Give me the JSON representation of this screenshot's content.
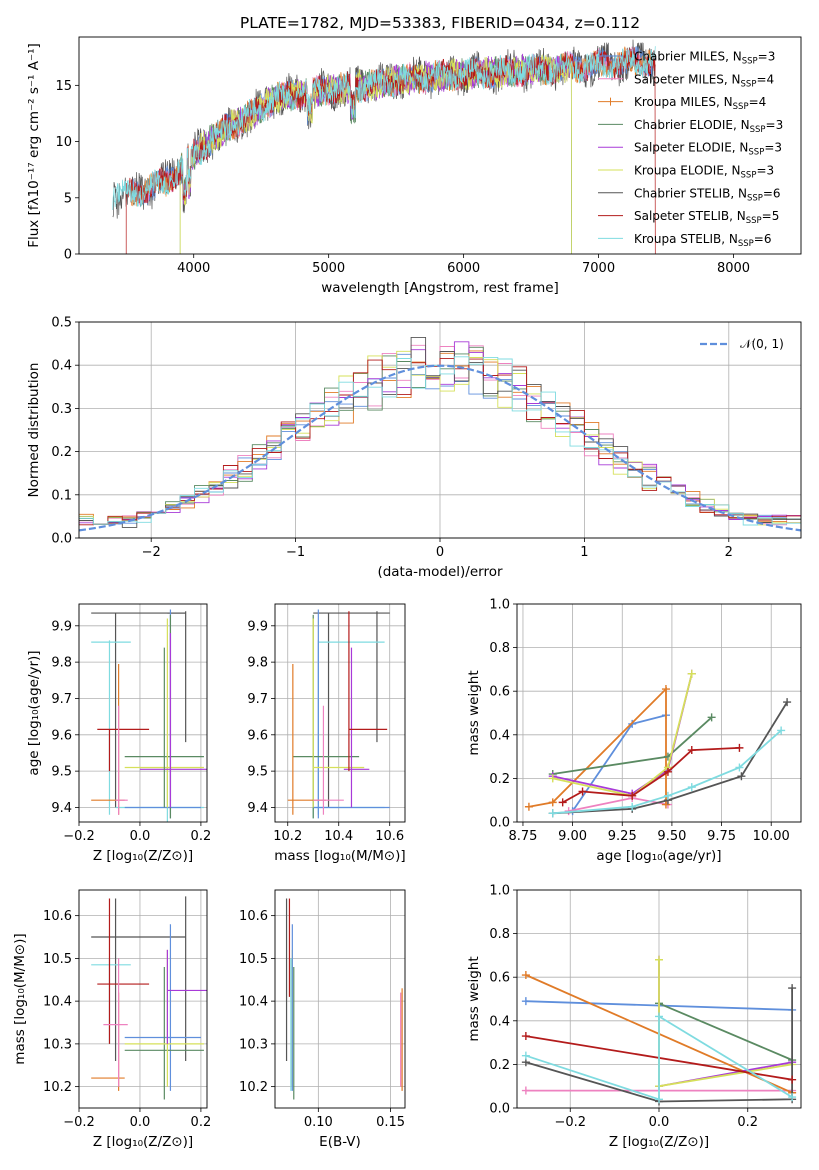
{
  "title": "PLATE=1782, MJD=53383, FIBERID=0434, z=0.112",
  "colors": {
    "Chabrier MILES": "#5f8fdc",
    "Salpeter MILES": "#ee82c0",
    "Kroupa MILES": "#e07b28",
    "Chabrier ELODIE": "#5a8a62",
    "Salpeter ELODIE": "#a83ad8",
    "Kroupa ELODIE": "#d6e05a",
    "Chabrier STELIB": "#555555",
    "Salpeter STELIB": "#b31b1b",
    "Kroupa STELIB": "#7fdbe0",
    "normal": "#5f8fdc"
  },
  "chart_data": [
    {
      "type": "line",
      "name": "spectrum",
      "xlabel": "wavelength [Angstrom, rest frame]",
      "ylabel": "Flux [fλ10⁻¹⁷ erg cm⁻² s⁻¹ A⁻¹]",
      "xlim": [
        3150,
        8500
      ],
      "ylim": [
        0,
        19.3
      ],
      "xticks": [
        4000,
        5000,
        6000,
        7000,
        8000
      ],
      "yticks": [
        0,
        5,
        10,
        15
      ],
      "legend_position": "right",
      "continuum": {
        "x": [
          3450,
          3600,
          3800,
          4000,
          4200,
          4400,
          4600,
          4800,
          5000,
          5300,
          5600,
          6000,
          6400,
          6800,
          7200,
          7400
        ],
        "y": [
          5.2,
          5.6,
          6.4,
          8.8,
          10.8,
          12.2,
          13.8,
          14.3,
          14.6,
          15.0,
          15.6,
          16.0,
          16.3,
          16.6,
          17.0,
          17.2
        ]
      },
      "series": [
        {
          "label": "Chabrier MILES, N",
          "sub": "SSP",
          "val": "=3",
          "range": [
            3540,
            7400
          ]
        },
        {
          "label": "Salpeter MILES, N",
          "sub": "SSP",
          "val": "=4",
          "range": [
            3540,
            7400
          ]
        },
        {
          "label": "Kroupa MILES, N",
          "sub": "SSP",
          "val": "=4",
          "range": [
            3540,
            7400
          ]
        },
        {
          "label": "Chabrier ELODIE, N",
          "sub": "SSP",
          "val": "=3",
          "range": [
            3900,
            6800
          ]
        },
        {
          "label": "Salpeter ELODIE, N",
          "sub": "SSP",
          "val": "=3",
          "range": [
            3900,
            6800
          ]
        },
        {
          "label": "Kroupa ELODIE, N",
          "sub": "SSP",
          "val": "=3",
          "range": [
            3900,
            6800
          ]
        },
        {
          "label": "Chabrier STELIB, N",
          "sub": "SSP",
          "val": "=6",
          "range": [
            3400,
            7420
          ]
        },
        {
          "label": "Salpeter STELIB, N",
          "sub": "SSP",
          "val": "=5",
          "range": [
            3500,
            7420
          ]
        },
        {
          "label": "Kroupa STELIB, N",
          "sub": "SSP",
          "val": "=6",
          "range": [
            3400,
            7420
          ]
        }
      ]
    },
    {
      "type": "histogram",
      "name": "residuals",
      "xlabel": "(data-model)/error",
      "ylabel": "Normed distribution",
      "xlim": [
        -2.5,
        2.5
      ],
      "ylim": [
        0,
        0.5
      ],
      "xticks": [
        -2,
        -1,
        0,
        1,
        2
      ],
      "yticks": [
        0.0,
        0.1,
        0.2,
        0.3,
        0.4,
        0.5
      ],
      "grid": true,
      "legend": "𝒩(0, 1)",
      "legend_position": "top-right",
      "bin_width": 0.1
    },
    {
      "type": "errorbar",
      "name": "age-vs-Z",
      "xlabel": "Z [log₁₀(Z/Z⊙)]",
      "ylabel": "age  [log₁₀(age/yr)]",
      "xlim": [
        -0.2,
        0.22
      ],
      "ylim": [
        9.36,
        9.96
      ],
      "xticks": [
        -0.2,
        0.0,
        0.2
      ],
      "yticks": [
        9.4,
        9.5,
        9.6,
        9.7,
        9.8,
        9.9
      ],
      "grid": true
    },
    {
      "type": "errorbar",
      "name": "age-vs-mass",
      "xlabel": "mass [log₁₀(M/M⊙)]",
      "xlim": [
        10.15,
        10.66
      ],
      "ylim": [
        9.36,
        9.96
      ],
      "xticks": [
        10.2,
        10.4,
        10.6
      ],
      "yticks": [
        9.4,
        9.5,
        9.6,
        9.7,
        9.8,
        9.9
      ],
      "grid": true
    },
    {
      "type": "line",
      "name": "mass-weight-vs-age",
      "xlabel": "age  [log₁₀(age/yr)]",
      "ylabel": "mass weight",
      "xlim": [
        8.72,
        10.15
      ],
      "ylim": [
        0,
        1
      ],
      "xticks": [
        8.75,
        9.0,
        9.25,
        9.5,
        9.75,
        10.0
      ],
      "yticks": [
        0.0,
        0.2,
        0.4,
        0.6,
        0.8,
        1.0
      ],
      "grid": true,
      "series": [
        {
          "name": "Chabrier MILES",
          "x": [
            9.0,
            9.3,
            9.47
          ],
          "y": [
            0.05,
            0.45,
            0.49
          ]
        },
        {
          "name": "Salpeter MILES",
          "x": [
            8.98,
            9.3,
            9.48
          ],
          "y": [
            0.05,
            0.11,
            0.08
          ]
        },
        {
          "name": "Kroupa MILES",
          "x": [
            8.78,
            8.9,
            9.47,
            9.47
          ],
          "y": [
            0.07,
            0.09,
            0.61,
            0.08
          ]
        },
        {
          "name": "Chabrier ELODIE",
          "x": [
            8.9,
            9.48,
            9.7
          ],
          "y": [
            0.22,
            0.3,
            0.48
          ]
        },
        {
          "name": "Salpeter ELODIE",
          "x": [
            8.9,
            9.3,
            9.48,
            9.6
          ],
          "y": [
            0.21,
            0.13,
            0.24,
            0.68
          ]
        },
        {
          "name": "Kroupa ELODIE",
          "x": [
            8.9,
            9.3,
            9.48,
            9.6
          ],
          "y": [
            0.2,
            0.12,
            0.25,
            0.68
          ]
        },
        {
          "name": "Chabrier STELIB",
          "x": [
            8.9,
            9.3,
            9.48,
            9.85,
            10.08
          ],
          "y": [
            0.04,
            0.06,
            0.1,
            0.21,
            0.55
          ]
        },
        {
          "name": "Salpeter STELIB",
          "x": [
            8.95,
            9.05,
            9.3,
            9.48,
            9.6,
            9.84
          ],
          "y": [
            0.09,
            0.14,
            0.12,
            0.23,
            0.33,
            0.34
          ]
        },
        {
          "name": "Kroupa STELIB",
          "x": [
            8.9,
            9.3,
            9.48,
            9.6,
            9.84,
            10.05
          ],
          "y": [
            0.04,
            0.07,
            0.12,
            0.16,
            0.25,
            0.42
          ]
        }
      ]
    },
    {
      "type": "errorbar",
      "name": "mass-vs-Z",
      "xlabel": "Z [log₁₀(Z/Z⊙)]",
      "ylabel": "mass [log₁₀(M/M⊙)]",
      "xlim": [
        -0.2,
        0.22
      ],
      "ylim": [
        10.15,
        10.66
      ],
      "xticks": [
        -0.2,
        0.0,
        0.2
      ],
      "yticks": [
        10.2,
        10.3,
        10.4,
        10.5,
        10.6
      ],
      "grid": true
    },
    {
      "type": "errorbar",
      "name": "mass-vs-ebv",
      "xlabel": "E(B-V)",
      "xlim": [
        0.07,
        0.16
      ],
      "ylim": [
        10.15,
        10.66
      ],
      "xticks": [
        0.1,
        0.15
      ],
      "yticks": [
        10.2,
        10.3,
        10.4,
        10.5,
        10.6
      ],
      "grid": true
    },
    {
      "type": "line",
      "name": "mass-weight-vs-Z",
      "xlabel": "Z [log₁₀(Z/Z⊙)]",
      "ylabel": "mass weight",
      "xlim": [
        -0.32,
        0.32
      ],
      "ylim": [
        0,
        1
      ],
      "xticks": [
        -0.2,
        0.0,
        0.2
      ],
      "yticks": [
        0.0,
        0.2,
        0.4,
        0.6,
        0.8,
        1.0
      ],
      "grid": true,
      "series": [
        {
          "name": "Chabrier MILES",
          "x": [
            -0.3,
            0.3
          ],
          "y": [
            0.49,
            0.45
          ]
        },
        {
          "name": "Salpeter MILES",
          "x": [
            -0.3,
            0.3
          ],
          "y": [
            0.08,
            0.08
          ]
        },
        {
          "name": "Kroupa MILES",
          "x": [
            -0.3,
            0.3
          ],
          "y": [
            0.61,
            0.07
          ]
        },
        {
          "name": "Chabrier ELODIE",
          "x": [
            0.0,
            0.3
          ],
          "y": [
            0.48,
            0.22
          ]
        },
        {
          "name": "Salpeter ELODIE",
          "x": [
            0.0,
            0.0,
            0.3
          ],
          "y": [
            0.68,
            0.1,
            0.21
          ]
        },
        {
          "name": "Kroupa ELODIE",
          "x": [
            0.0,
            0.0,
            0.3
          ],
          "y": [
            0.68,
            0.1,
            0.2
          ]
        },
        {
          "name": "Chabrier STELIB",
          "x": [
            -0.3,
            0.0,
            0.3,
            0.3
          ],
          "y": [
            0.21,
            0.03,
            0.04,
            0.55
          ]
        },
        {
          "name": "Salpeter STELIB",
          "x": [
            -0.3,
            0.3
          ],
          "y": [
            0.33,
            0.13
          ]
        },
        {
          "name": "Kroupa STELIB",
          "x": [
            -0.3,
            0.0,
            0.0,
            0.3
          ],
          "y": [
            0.24,
            0.04,
            0.42,
            0.05
          ]
        }
      ]
    }
  ]
}
